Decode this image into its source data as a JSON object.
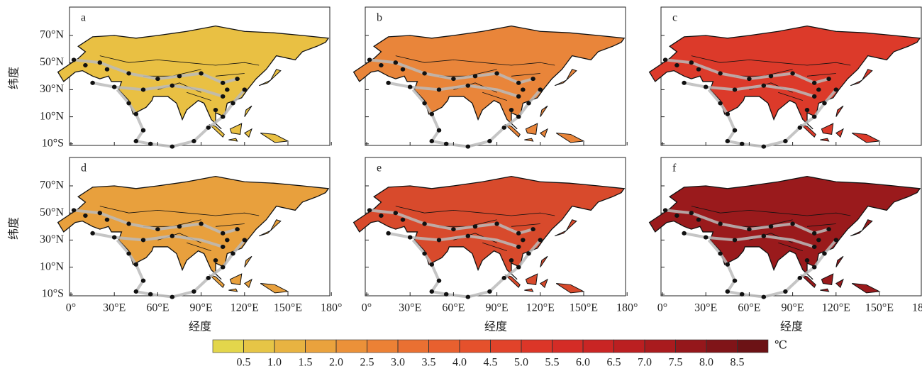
{
  "panels": [
    {
      "label": "a",
      "color": "#e9c043"
    },
    {
      "label": "b",
      "color": "#e9853a"
    },
    {
      "label": "c",
      "color": "#dc3a2a"
    },
    {
      "label": "d",
      "color": "#e8a03d"
    },
    {
      "label": "e",
      "color": "#d84a2c"
    },
    {
      "label": "f",
      "color": "#9a1a1c"
    }
  ],
  "y_label": "纬度",
  "x_label": "经度",
  "y_ticks": [
    "70°N",
    "50°N",
    "30°N",
    "10°N",
    "10°S"
  ],
  "x_ticks": [
    "0°",
    "30°E",
    "60°E",
    "90°E",
    "120°E",
    "150°E",
    "180°"
  ],
  "colorbar": {
    "unit": "℃",
    "lim": [
      0,
      9
    ],
    "ticks": [
      0.5,
      {
        "value": 1,
        "label": "1.0"
      },
      1.5,
      {
        "value": 2,
        "label": "2.0"
      },
      2.5,
      {
        "value": 3,
        "label": "3.0"
      },
      3.5,
      {
        "value": 4,
        "label": "4.0"
      },
      4.5,
      {
        "value": 5,
        "label": "5.0"
      },
      5.5,
      {
        "value": 6,
        "label": "6.0"
      },
      6.5,
      {
        "value": 7,
        "label": "7.0"
      },
      7.5,
      {
        "value": 8,
        "label": "8.0"
      },
      8.5
    ],
    "colors": [
      "#e3d64b",
      "#e6c546",
      "#e8b341",
      "#eaa23d",
      "#eb9139",
      "#ec8135",
      "#ea7032",
      "#e8602f",
      "#e5512c",
      "#e1432a",
      "#dc3628",
      "#d42c26",
      "#c92524",
      "#bb1f21",
      "#a91b1e",
      "#95171b",
      "#801418",
      "#6c1215"
    ]
  }
}
